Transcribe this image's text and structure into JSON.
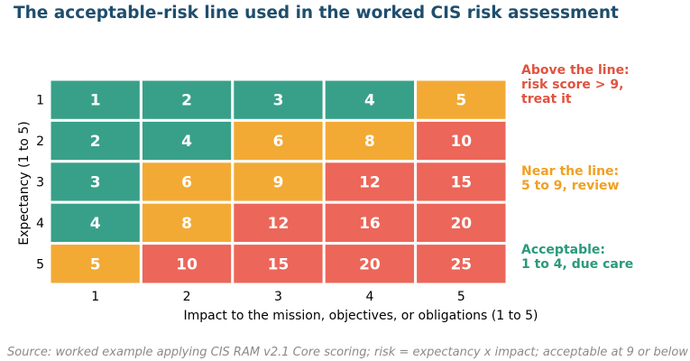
{
  "title": "The acceptable-risk line used in the worked CIS risk assessment",
  "source": "Source: worked example applying CIS RAM v2.1 Core scoring; risk = expectancy x impact; acceptable at 9 or below",
  "colors": {
    "acceptable": "#38a089",
    "review": "#f2aa35",
    "treat": "#ec6659",
    "title": "#1f4e6e",
    "ann_above": "#e0533f",
    "ann_near": "#f0a023",
    "ann_acceptable": "#2a9a7c"
  },
  "annotations": {
    "above": [
      "Above the line:",
      "risk score > 9,",
      "treat it"
    ],
    "near": [
      "Near the line:",
      "5 to 9, review"
    ],
    "acceptable": [
      "Acceptable:",
      "1 to 4, due care"
    ]
  },
  "chart_data": {
    "type": "heatmap",
    "title": "The acceptable-risk line used in the worked CIS risk assessment",
    "xlabel": "Impact to the mission, objectives, or obligations (1 to 5)",
    "ylabel": "Expectancy (1 to 5)",
    "x": [
      1,
      2,
      3,
      4,
      5
    ],
    "y": [
      1,
      2,
      3,
      4,
      5
    ],
    "values": [
      [
        1,
        2,
        3,
        4,
        5
      ],
      [
        2,
        4,
        6,
        8,
        10
      ],
      [
        3,
        6,
        9,
        12,
        15
      ],
      [
        4,
        8,
        12,
        16,
        20
      ],
      [
        5,
        10,
        15,
        20,
        25
      ]
    ],
    "bands": [
      {
        "label": "acceptable",
        "min": 1,
        "max": 4
      },
      {
        "label": "review",
        "min": 5,
        "max": 9
      },
      {
        "label": "treat",
        "min": 10,
        "max": 25
      }
    ]
  }
}
